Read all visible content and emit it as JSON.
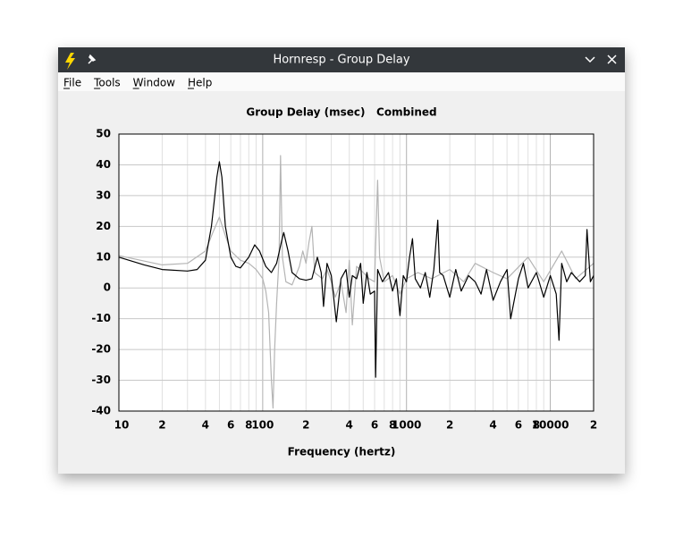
{
  "window": {
    "title": "Hornresp - Group Delay"
  },
  "menu": [
    "File",
    "Tools",
    "Window",
    "Help"
  ],
  "chart_data": {
    "type": "line",
    "title": "Group Delay (msec)   Combined",
    "xlabel": "Frequency (hertz)",
    "xscale": "log",
    "xlim": [
      10,
      20000
    ],
    "ylim": [
      -40,
      50
    ],
    "yticks": [
      50,
      40,
      30,
      20,
      10,
      0,
      -10,
      -20,
      -30,
      -40
    ],
    "xticks": [
      {
        "value": 10,
        "label": "10"
      },
      {
        "value": 20,
        "label": "2"
      },
      {
        "value": 40,
        "label": "4"
      },
      {
        "value": 60,
        "label": "6"
      },
      {
        "value": 80,
        "label": "8"
      },
      {
        "value": 100,
        "label": "100"
      },
      {
        "value": 200,
        "label": "2"
      },
      {
        "value": 400,
        "label": "4"
      },
      {
        "value": 600,
        "label": "6"
      },
      {
        "value": 800,
        "label": "8"
      },
      {
        "value": 1000,
        "label": "1000"
      },
      {
        "value": 2000,
        "label": "2"
      },
      {
        "value": 4000,
        "label": "4"
      },
      {
        "value": 6000,
        "label": "6"
      },
      {
        "value": 8000,
        "label": "8"
      },
      {
        "value": 10000,
        "label": "10000"
      },
      {
        "value": 20000,
        "label": "2"
      }
    ],
    "xgrid_minor": [
      30,
      50,
      70,
      90,
      300,
      500,
      700,
      900,
      3000,
      5000,
      7000,
      9000
    ],
    "grid": true,
    "series": [
      {
        "color": "#b4b4b4",
        "x": [
          10,
          20,
          30,
          40,
          45,
          50,
          55,
          60,
          70,
          80,
          90,
          100,
          105,
          110,
          115,
          118,
          121,
          125,
          130,
          133,
          137,
          145,
          160,
          180,
          190,
          200,
          210,
          220,
          230,
          260,
          280,
          300,
          320,
          350,
          380,
          400,
          420,
          450,
          500,
          550,
          600,
          630,
          650,
          700,
          800,
          900,
          1000,
          1200,
          1500,
          2000,
          2500,
          3000,
          4000,
          5000,
          7000,
          9000,
          12000,
          15000,
          20000
        ],
        "values": [
          10.5,
          7.5,
          8,
          12,
          18,
          23,
          17,
          12,
          9,
          8,
          6,
          3,
          -1,
          -8,
          -30,
          -39,
          -20,
          -5,
          10,
          43,
          10,
          2,
          1,
          7,
          12,
          8,
          15,
          20,
          5,
          3,
          6,
          2,
          -3,
          2,
          -8,
          9,
          -12,
          7,
          5,
          3,
          2,
          35,
          10,
          2,
          4,
          -2,
          3,
          5,
          3,
          6,
          2,
          8,
          5,
          3,
          10,
          2,
          12,
          3,
          8
        ]
      },
      {
        "color": "#000000",
        "x": [
          10,
          15,
          20,
          30,
          35,
          40,
          44,
          48,
          50,
          52,
          55,
          60,
          65,
          70,
          80,
          88,
          95,
          105,
          115,
          125,
          135,
          140,
          150,
          160,
          180,
          200,
          220,
          240,
          255,
          265,
          280,
          300,
          325,
          350,
          380,
          400,
          420,
          450,
          480,
          500,
          530,
          560,
          600,
          610,
          630,
          680,
          750,
          800,
          850,
          900,
          950,
          1000,
          1050,
          1100,
          1150,
          1250,
          1350,
          1450,
          1550,
          1650,
          1700,
          1800,
          2000,
          2200,
          2400,
          2700,
          3000,
          3300,
          3600,
          4000,
          4500,
          5000,
          5300,
          6000,
          6500,
          7000,
          8000,
          9000,
          10000,
          11000,
          11500,
          12000,
          13000,
          14000,
          16000,
          17500,
          18000,
          19000,
          20000
        ],
        "values": [
          10,
          7.5,
          6,
          5.5,
          6,
          9,
          20,
          36,
          41,
          36,
          20,
          10,
          7,
          6.5,
          10,
          14,
          12,
          7,
          5,
          8,
          15,
          18,
          12,
          5,
          3,
          2.5,
          3,
          10,
          5,
          -6,
          8,
          4,
          -11,
          3,
          6,
          -3,
          4,
          3,
          8,
          -5,
          5,
          -2,
          -1,
          -29,
          6,
          2,
          5,
          -1,
          3,
          -9,
          4,
          2,
          10,
          16,
          3,
          0,
          5,
          -3,
          6,
          22,
          5,
          4,
          -3,
          6,
          -1,
          4,
          2,
          -2,
          6,
          -4,
          2,
          6,
          -10,
          3,
          8,
          0,
          5,
          -3,
          4,
          -2,
          -17,
          8,
          2,
          5,
          2,
          4,
          19,
          2,
          4
        ]
      }
    ]
  }
}
